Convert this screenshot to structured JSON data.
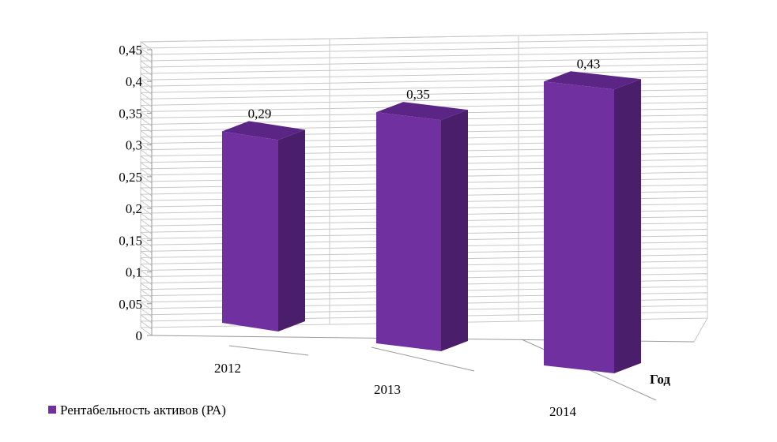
{
  "chart_data": {
    "type": "bar",
    "categories": [
      "2012",
      "2013",
      "2014"
    ],
    "series": [
      {
        "name": "Рентабельность активов (РА)",
        "values": [
          0.29,
          0.35,
          0.43
        ]
      }
    ],
    "data_labels": [
      "0,29",
      "0,35",
      "0,43"
    ],
    "xlabel": "Год",
    "ylabel": "",
    "ylim": [
      0,
      0.45
    ],
    "y_ticks": [
      "0",
      "0,05",
      "0,1",
      "0,15",
      "0,2",
      "0,25",
      "0,3",
      "0,35",
      "0,4",
      "0,45"
    ],
    "grid": true,
    "legend_position": "bottom-left",
    "style": "3d-column",
    "colors": {
      "bar_front": "#7030a0",
      "bar_side": "#4a1e6b",
      "bar_top": "#5b2585",
      "grid": "#c8c8c8",
      "axis": "#9a9a9a"
    }
  }
}
